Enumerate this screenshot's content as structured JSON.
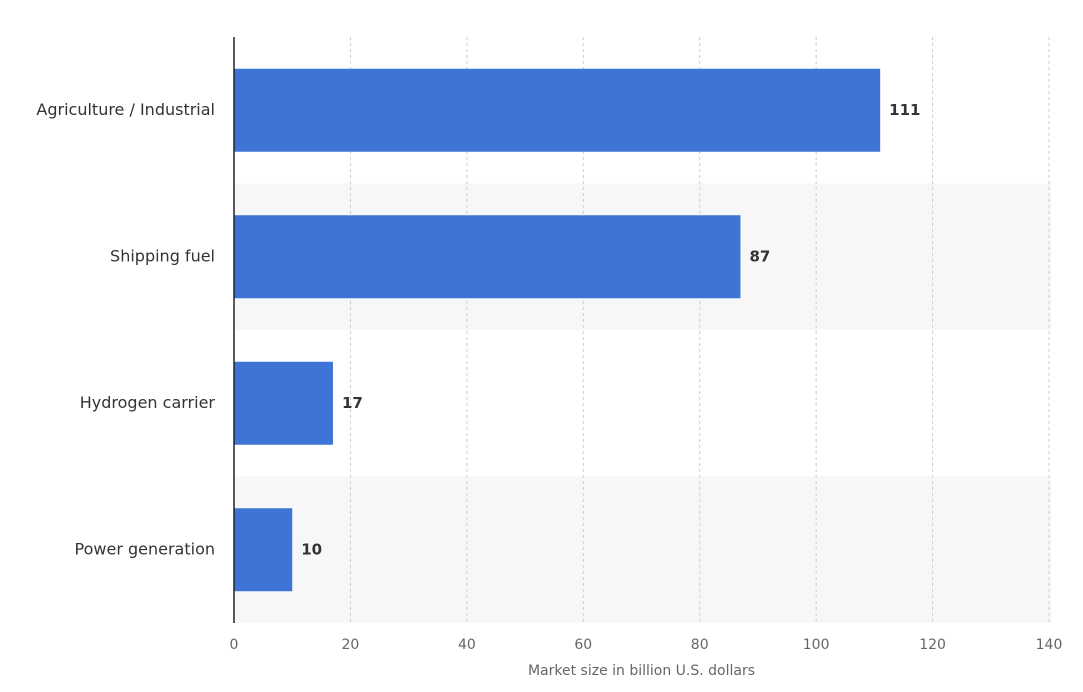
{
  "colors": {
    "bar": "#3d74d6",
    "band": "#f7f7f7",
    "grid": "#cccccc",
    "axis": "#222222"
  },
  "chart_data": {
    "type": "bar",
    "orientation": "horizontal",
    "categories": [
      "Agriculture / Industrial",
      "Shipping fuel",
      "Hydrogen carrier",
      "Power generation"
    ],
    "values": [
      111,
      87,
      17,
      10
    ],
    "value_labels": [
      "111",
      "87",
      "17",
      "10"
    ],
    "title": "",
    "xlabel": "Market size in billion U.S. dollars",
    "ylabel": "",
    "xlim": [
      0,
      140
    ],
    "xticks": [
      0,
      20,
      40,
      60,
      80,
      100,
      120,
      140
    ],
    "xtick_labels": [
      "0",
      "20",
      "40",
      "60",
      "80",
      "100",
      "120",
      "140"
    ],
    "grid": "vertical dashed",
    "legend": "none"
  }
}
